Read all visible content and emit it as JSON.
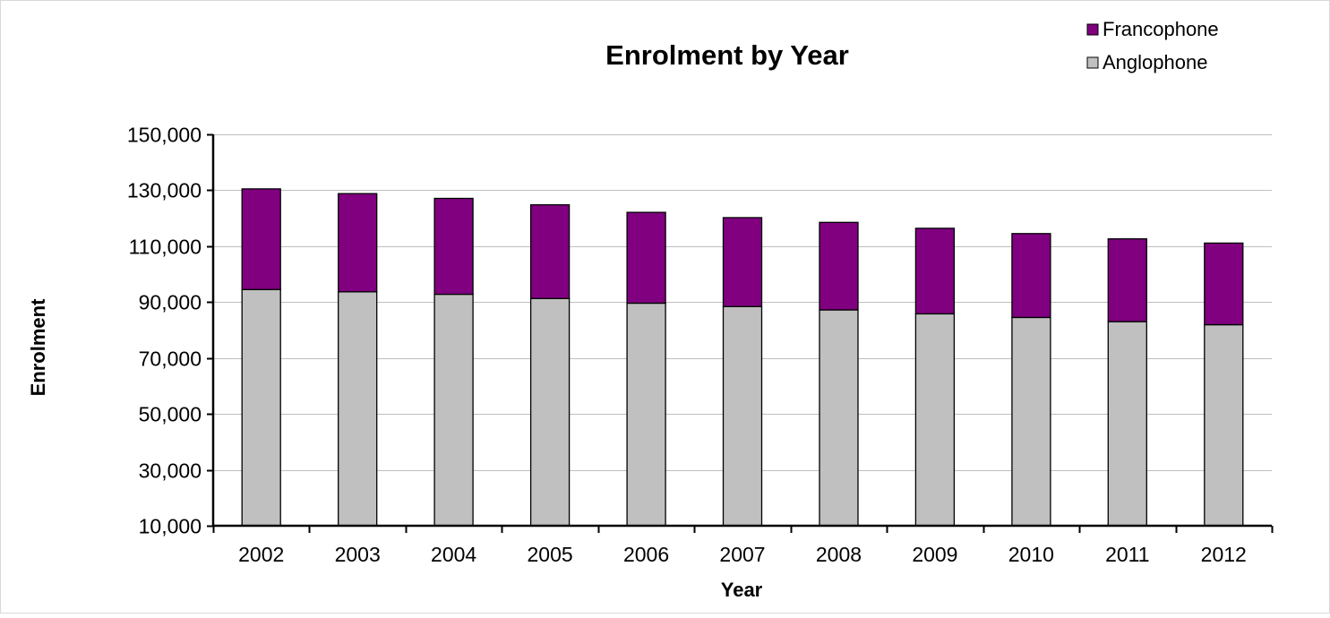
{
  "chart_data": {
    "type": "bar",
    "stacked": true,
    "title": "Enrolment by Year",
    "xlabel": "Year",
    "ylabel": "Enrolment",
    "ylim": [
      10000,
      150000
    ],
    "yticks": [
      10000,
      30000,
      50000,
      70000,
      90000,
      110000,
      130000,
      150000
    ],
    "ytick_labels": [
      "10,000",
      "30,000",
      "50,000",
      "70,000",
      "90,000",
      "110,000",
      "130,000",
      "150,000"
    ],
    "grid": true,
    "legend_position": "top-right",
    "categories": [
      "2002",
      "2003",
      "2004",
      "2005",
      "2006",
      "2007",
      "2008",
      "2009",
      "2010",
      "2011",
      "2012"
    ],
    "series": [
      {
        "name": "Anglophone",
        "color": "#c0c0c0",
        "values": [
          84500,
          83700,
          82800,
          81300,
          79600,
          78400,
          77200,
          75800,
          74500,
          73000,
          71900
        ]
      },
      {
        "name": "Francophone",
        "color": "#800080",
        "values": [
          36000,
          35100,
          34300,
          33500,
          32500,
          31800,
          31300,
          30600,
          30000,
          29600,
          29200
        ]
      }
    ],
    "legend_order": [
      "Francophone",
      "Anglophone"
    ]
  }
}
